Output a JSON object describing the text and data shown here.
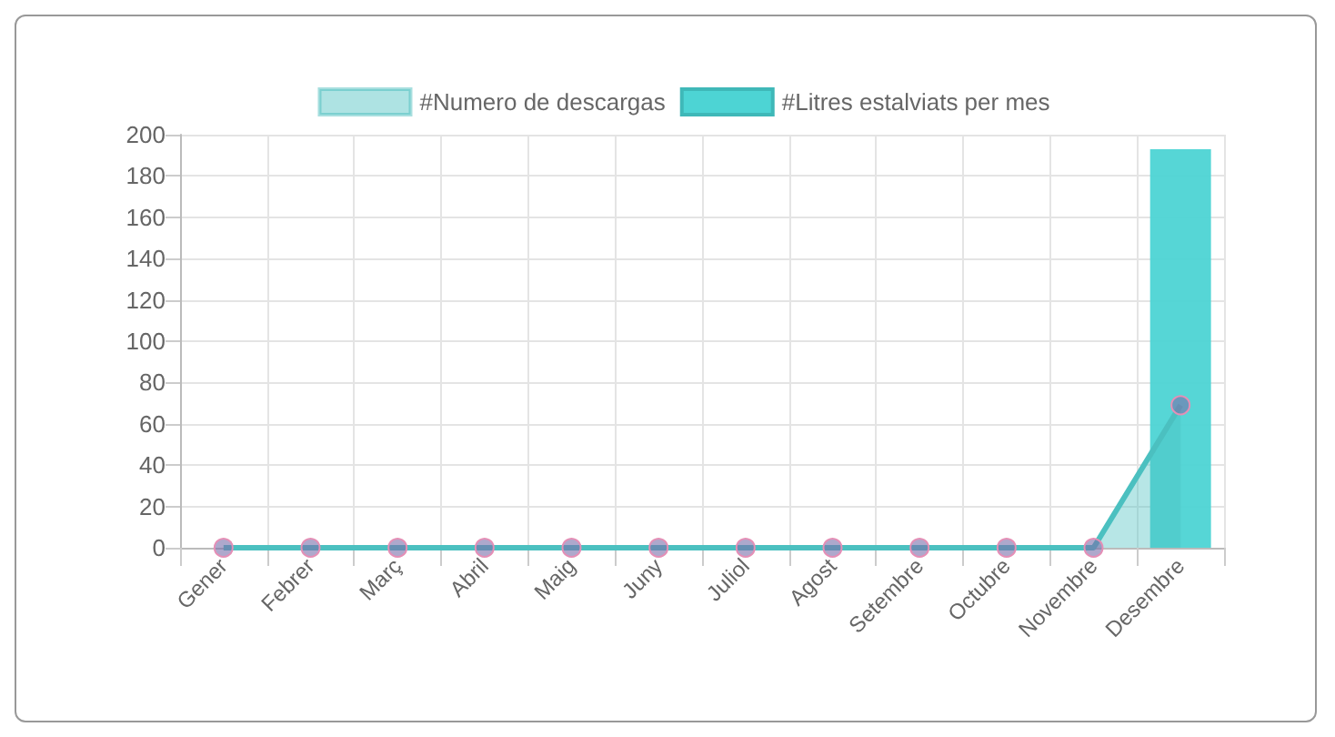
{
  "chart_data": {
    "type": "bar",
    "categories": [
      "Gener",
      "Febrer",
      "Març",
      "Abril",
      "Maig",
      "Juny",
      "Juliol",
      "Agost",
      "Setembre",
      "Octubre",
      "Novembre",
      "Desembre"
    ],
    "series": [
      {
        "name": "#Numero de descargas",
        "type": "area",
        "color": "#4bc0c0",
        "values": [
          0,
          0,
          0,
          0,
          0,
          0,
          0,
          0,
          0,
          0,
          0,
          69
        ]
      },
      {
        "name": "#Litres estalviats per mes",
        "color": "#4dd4d4",
        "values": [
          0,
          0,
          0,
          0,
          0,
          0,
          0,
          0,
          0,
          0,
          0,
          193
        ]
      }
    ],
    "ylim": [
      0,
      200
    ],
    "yticks": [
      0,
      20,
      40,
      60,
      80,
      100,
      120,
      140,
      160,
      180,
      200
    ],
    "grid": true,
    "legend": "top",
    "marker": "circle"
  }
}
